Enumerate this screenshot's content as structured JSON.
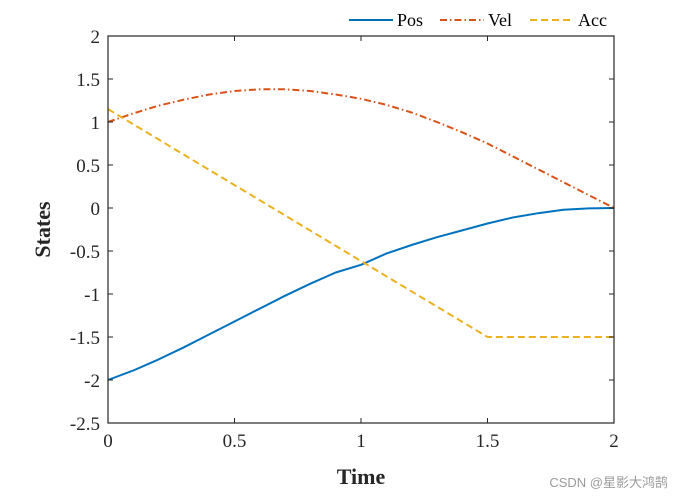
{
  "chart_data": {
    "type": "line",
    "title": "",
    "xlabel": "Time",
    "ylabel": "States",
    "xlim": [
      0,
      2
    ],
    "ylim": [
      -2.5,
      2
    ],
    "xticks": [
      0,
      0.5,
      1,
      1.5,
      2
    ],
    "xtick_labels": [
      "0",
      "0.5",
      "1",
      "1.5",
      "2"
    ],
    "yticks": [
      2,
      1.5,
      1,
      0.5,
      0,
      -0.5,
      -1,
      -1.5,
      -2,
      -2.5
    ],
    "ytick_labels": [
      "2",
      "1.5",
      "1",
      "0.5",
      "0",
      "-0.5",
      "-1",
      "-1.5",
      "-2",
      "-2.5"
    ],
    "grid": false,
    "legend_position": "top",
    "series": [
      {
        "name": "Pos",
        "color": "#0072BD",
        "style": "solid",
        "x": [
          0,
          0.1,
          0.2,
          0.3,
          0.4,
          0.5,
          0.6,
          0.7,
          0.8,
          0.9,
          1.0,
          1.1,
          1.2,
          1.3,
          1.4,
          1.5,
          1.6,
          1.7,
          1.8,
          1.9,
          2.0
        ],
        "y": [
          -2,
          -1.89,
          -1.76,
          -1.62,
          -1.47,
          -1.32,
          -1.17,
          -1.02,
          -0.88,
          -0.75,
          -0.66,
          -0.53,
          -0.43,
          -0.34,
          -0.26,
          -0.18,
          -0.11,
          -0.06,
          -0.02,
          -0.005,
          0
        ]
      },
      {
        "name": "Vel",
        "color": "#D95319",
        "style": "dashdot",
        "x": [
          0,
          0.1,
          0.2,
          0.3,
          0.4,
          0.5,
          0.6,
          0.7,
          0.8,
          0.9,
          1.0,
          1.1,
          1.2,
          1.3,
          1.4,
          1.5,
          1.6,
          1.7,
          1.8,
          1.9,
          2.0
        ],
        "y": [
          1.0,
          1.1,
          1.19,
          1.26,
          1.32,
          1.36,
          1.38,
          1.38,
          1.36,
          1.32,
          1.27,
          1.2,
          1.11,
          1.0,
          0.88,
          0.75,
          0.6,
          0.45,
          0.3,
          0.15,
          0
        ]
      },
      {
        "name": "Acc",
        "color": "#EDB120",
        "style": "dashed",
        "x": [
          0,
          1.5,
          2.0
        ],
        "y": [
          1.15,
          -1.5,
          -1.5
        ]
      }
    ]
  },
  "watermark": "CSDN @星影大鸿鹄"
}
